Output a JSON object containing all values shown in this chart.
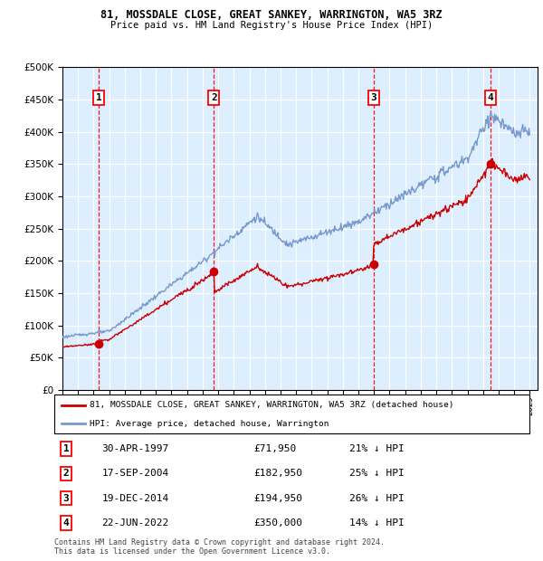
{
  "title1": "81, MOSSDALE CLOSE, GREAT SANKEY, WARRINGTON, WA5 3RZ",
  "title2": "Price paid vs. HM Land Registry's House Price Index (HPI)",
  "bg_color": "#ddeeff",
  "hpi_color": "#7799cc",
  "price_color": "#cc0000",
  "sale_dates": [
    1997.33,
    2004.72,
    2014.97,
    2022.47
  ],
  "sale_prices": [
    71950,
    182950,
    194950,
    350000
  ],
  "sale_labels": [
    "1",
    "2",
    "3",
    "4"
  ],
  "sale_info": [
    {
      "num": "1",
      "date": "30-APR-1997",
      "price": "£71,950",
      "hpi": "21% ↓ HPI"
    },
    {
      "num": "2",
      "date": "17-SEP-2004",
      "price": "£182,950",
      "hpi": "25% ↓ HPI"
    },
    {
      "num": "3",
      "date": "19-DEC-2014",
      "price": "£194,950",
      "hpi": "26% ↓ HPI"
    },
    {
      "num": "4",
      "date": "22-JUN-2022",
      "price": "£350,000",
      "hpi": "14% ↓ HPI"
    }
  ],
  "legend_line1": "81, MOSSDALE CLOSE, GREAT SANKEY, WARRINGTON, WA5 3RZ (detached house)",
  "legend_line2": "HPI: Average price, detached house, Warrington",
  "footer": "Contains HM Land Registry data © Crown copyright and database right 2024.\nThis data is licensed under the Open Government Licence v3.0.",
  "xmin": 1995.0,
  "xmax": 2025.5,
  "ymin": 0,
  "ymax": 500000,
  "yticks": [
    0,
    50000,
    100000,
    150000,
    200000,
    250000,
    300000,
    350000,
    400000,
    450000,
    500000
  ]
}
